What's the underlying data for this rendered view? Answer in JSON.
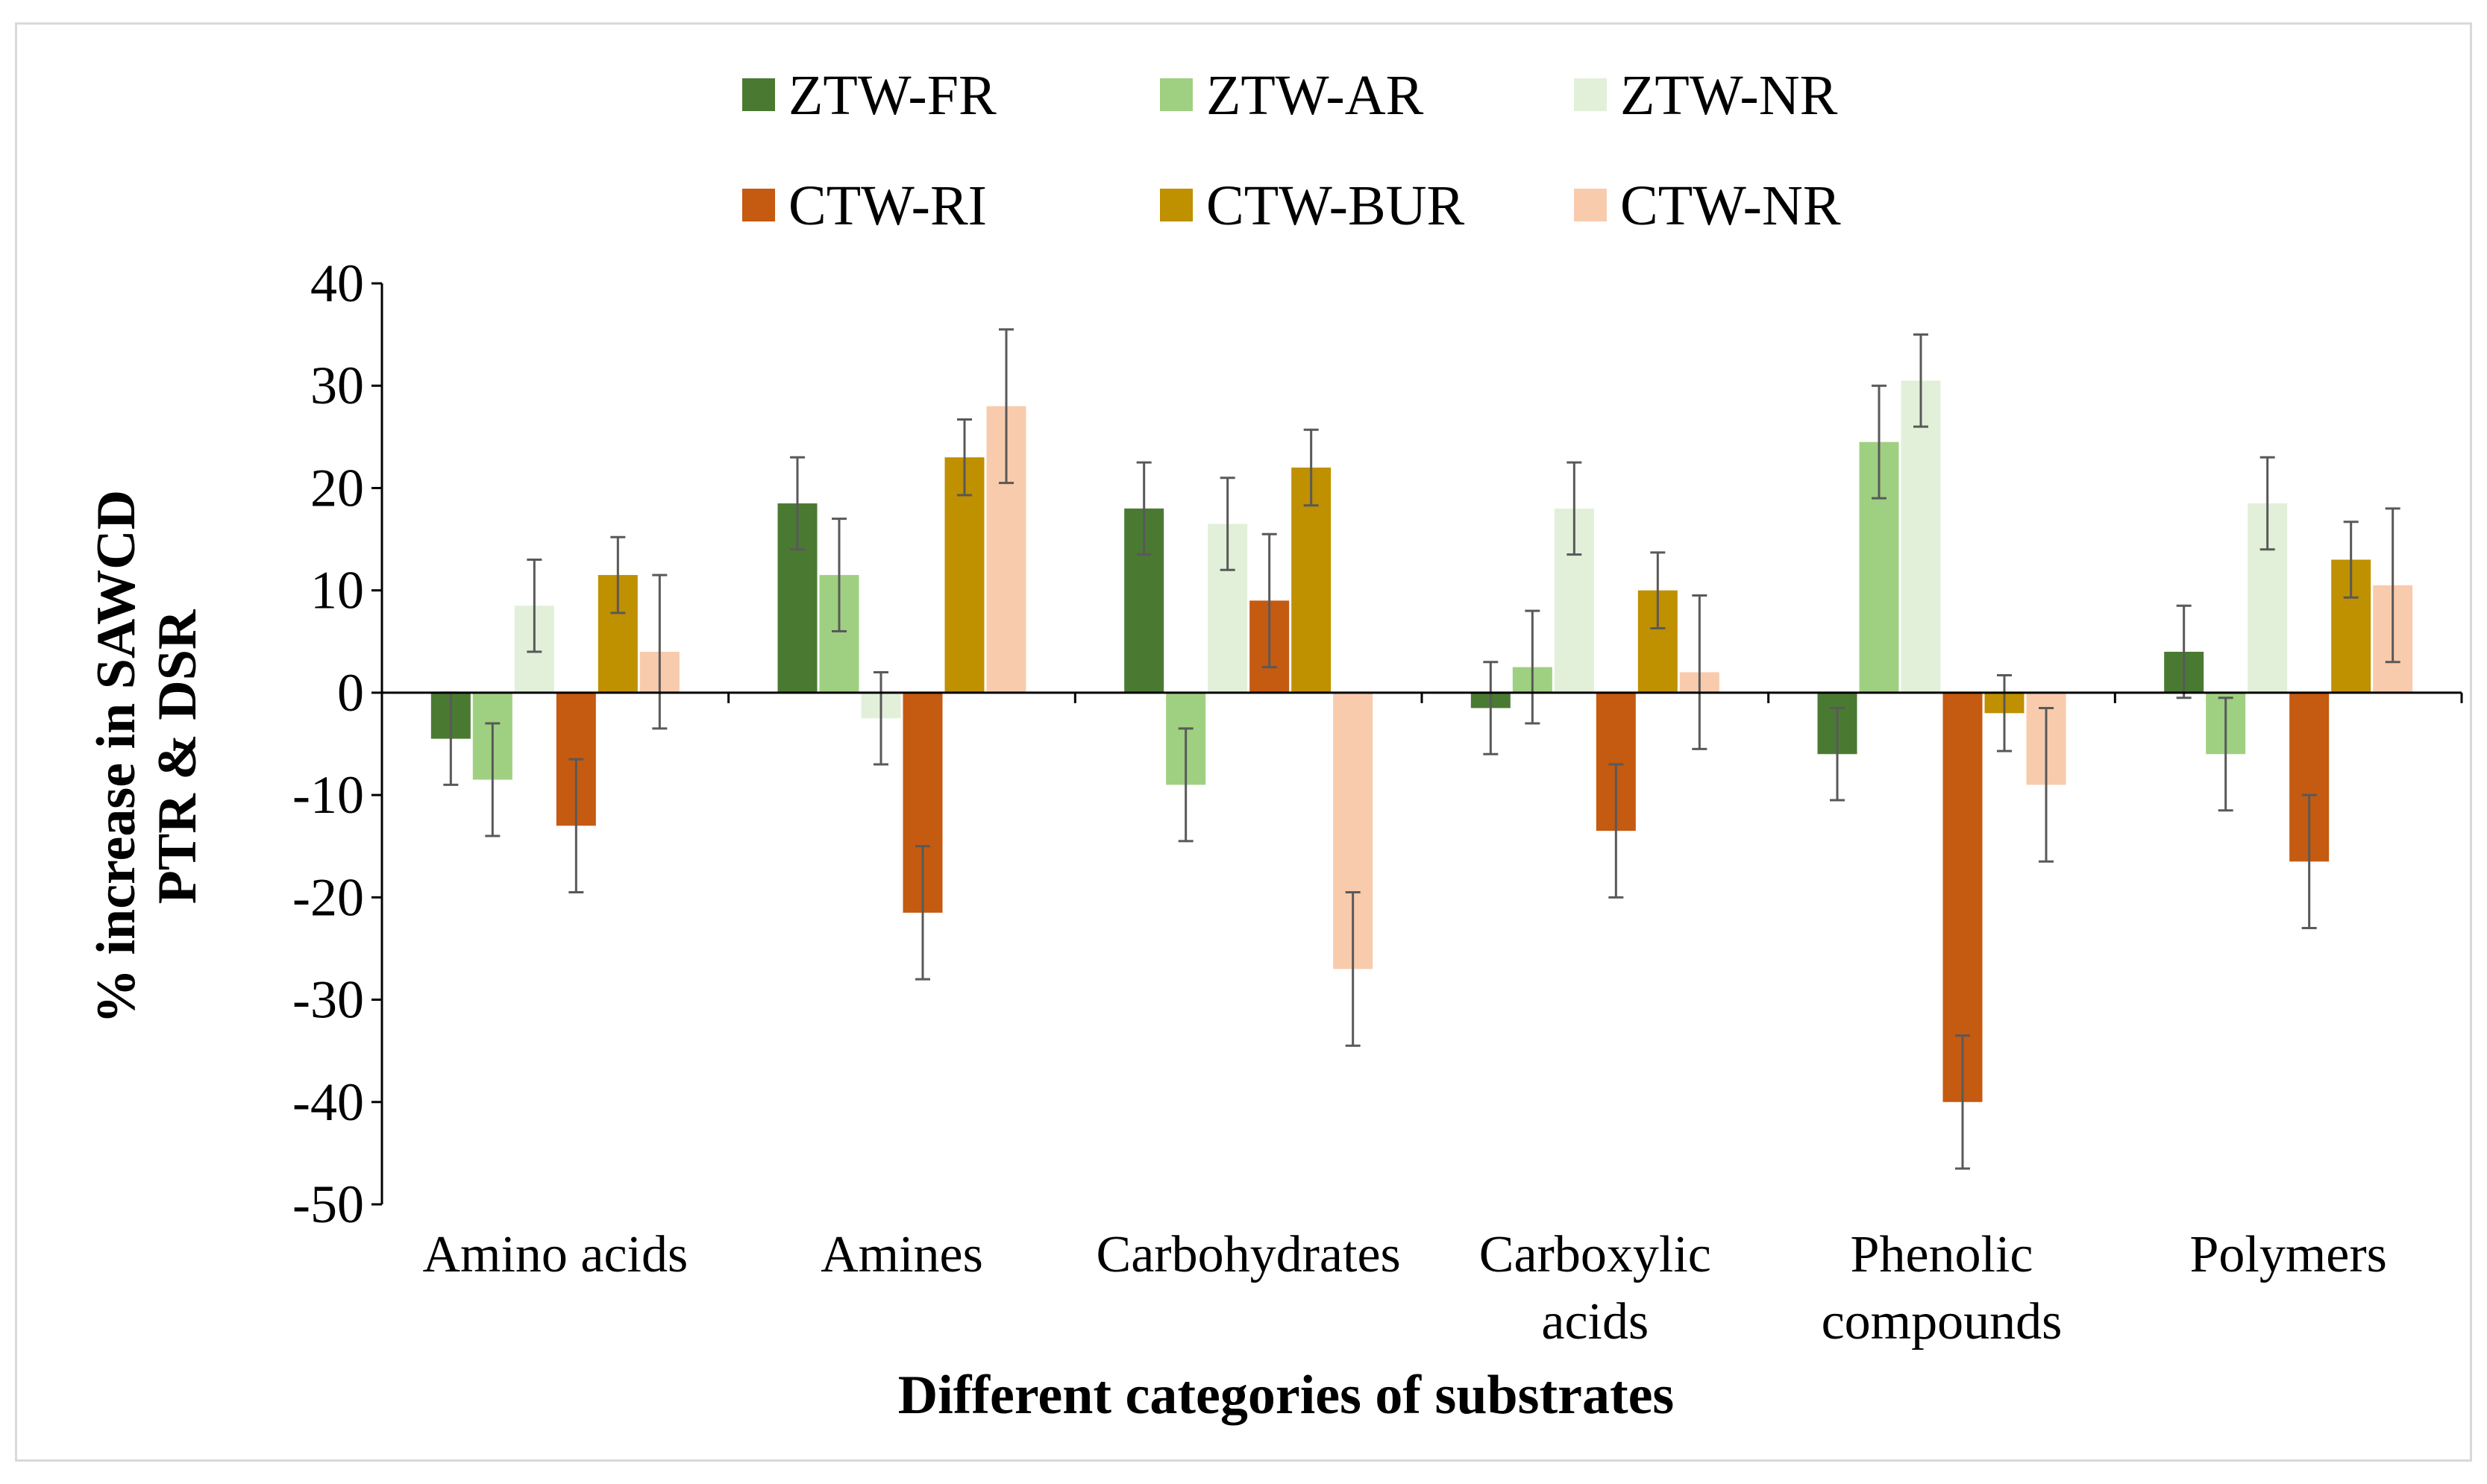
{
  "chart_data": {
    "type": "bar",
    "title": "",
    "xlabel": "Different categories of substrates",
    "ylabel_lines": [
      "% increase in SAWCD",
      "PTR & DSR"
    ],
    "ylim": [
      -50,
      40
    ],
    "yticks": [
      40,
      30,
      20,
      10,
      0,
      -10,
      -20,
      -30,
      -40,
      -50
    ],
    "grid": false,
    "legend_position": "top",
    "categories": [
      [
        "Amino acids"
      ],
      [
        "Amines"
      ],
      [
        "Carbohydrates"
      ],
      [
        "Carboxylic",
        "acids"
      ],
      [
        "Phenolic",
        "compounds"
      ],
      [
        "Polymers"
      ]
    ],
    "series": [
      {
        "name": "ZTW-FR",
        "color": "#4a7a32",
        "values": [
          -4.5,
          18.5,
          18,
          -1.5,
          -6,
          4
        ],
        "errors": [
          4.5,
          4.5,
          4.5,
          4.5,
          4.5,
          4.5
        ]
      },
      {
        "name": "ZTW-AR",
        "color": "#9fd081",
        "values": [
          -8.5,
          11.5,
          -9,
          2.5,
          24.5,
          -6
        ],
        "errors": [
          5.5,
          5.5,
          5.5,
          5.5,
          5.5,
          5.5
        ]
      },
      {
        "name": "ZTW-NR",
        "color": "#e2f0d9",
        "values": [
          8.5,
          -2.5,
          16.5,
          18,
          30.5,
          18.5
        ],
        "errors": [
          4.5,
          4.5,
          4.5,
          4.5,
          4.5,
          4.5
        ]
      },
      {
        "name": "CTW-RI",
        "color": "#c55a11",
        "values": [
          -13,
          -21.5,
          9,
          -13.5,
          -40,
          -16.5
        ],
        "errors": [
          6.5,
          6.5,
          6.5,
          6.5,
          6.5,
          6.5
        ]
      },
      {
        "name": "CTW-BUR",
        "color": "#bf9000",
        "values": [
          11.5,
          23,
          22,
          10,
          -2,
          13
        ],
        "errors": [
          3.7,
          3.7,
          3.7,
          3.7,
          3.7,
          3.7
        ]
      },
      {
        "name": "CTW-NR",
        "color": "#f8cbad",
        "values": [
          4,
          28,
          -27,
          2,
          -9,
          10.5
        ],
        "errors": [
          7.5,
          7.5,
          7.5,
          7.5,
          7.5,
          7.5
        ]
      }
    ]
  }
}
